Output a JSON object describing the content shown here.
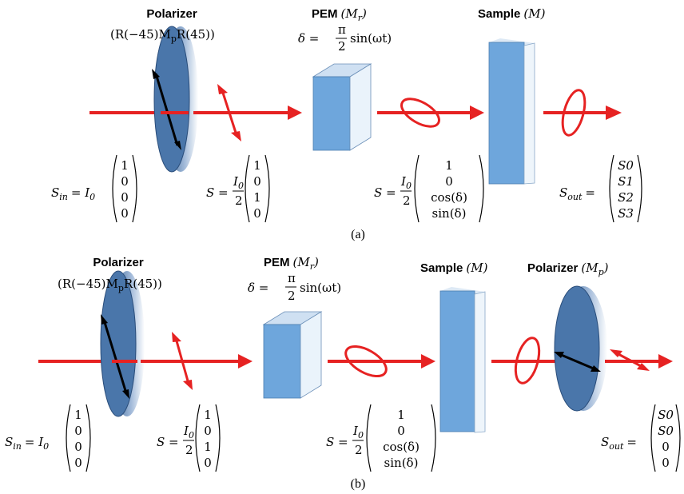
{
  "panel_a": {
    "caption": "(a)",
    "polarizer_title": "Polarizer",
    "polarizer_formula": "(R(−45)M",
    "polarizer_formula_sub": "p",
    "polarizer_formula_tail": "R(45))",
    "pem_title": "PEM",
    "pem_sym": "(M",
    "pem_sub": "r",
    "pem_close": ")",
    "pem_delta": "δ =",
    "pem_pi": "π",
    "pem_two": "2",
    "pem_sin": "sin(ωt)",
    "sample_title": "Sample",
    "sample_sym": "(M)",
    "s_in_label": "S",
    "s_in_sub": "in",
    "s_in_eq": "= I",
    "s_in_eq_sub": "0",
    "s_in_vec": [
      "1",
      "0",
      "0",
      "0"
    ],
    "s1_label": "S =",
    "s1_frac_num": "I",
    "s1_frac_num_sub": "0",
    "s1_frac_den": "2",
    "s1_vec": [
      "1",
      "0",
      "1",
      "0"
    ],
    "s2_label": "S =",
    "s2_vec": [
      "1",
      "0",
      "cos(δ)",
      "sin(δ)"
    ],
    "s_out_label": "S",
    "s_out_sub": "out",
    "s_out_eq": "=",
    "s_out_vec": [
      "S0",
      "S1",
      "S2",
      "S3"
    ]
  },
  "panel_b": {
    "caption": "(b)",
    "polarizer_title": "Polarizer",
    "polarizer2_title": "Polarizer",
    "polarizer2_sym": "(M",
    "polarizer2_sub": "p",
    "polarizer2_close": ")",
    "s_out_vec": [
      "S0",
      "S0",
      "0",
      "0"
    ]
  }
}
